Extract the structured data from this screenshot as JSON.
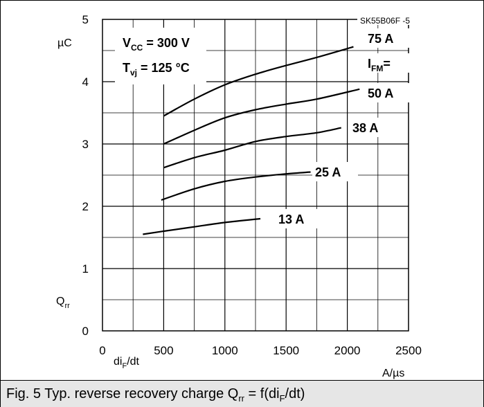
{
  "chart_data": {
    "type": "line",
    "code": "SK55B06F -5",
    "conditions": {
      "vcc": {
        "symbol": "V",
        "sub": "CC",
        "value": " = 300 V"
      },
      "tvj": {
        "symbol": "T",
        "sub": "vj",
        "value": " = 125 °C"
      }
    },
    "ifm_label": {
      "symbol": "I",
      "sub": "FM",
      "suffix": "="
    },
    "x_axis": {
      "label_symbol": "di",
      "label_sub": "F",
      "label_suffix": "/dt",
      "unit": "A/µs",
      "min": 0,
      "max": 2500,
      "major": 500,
      "minor": 250,
      "ticks": [
        0,
        500,
        1000,
        1500,
        2000,
        2500
      ]
    },
    "y_axis": {
      "label_symbol": "Q",
      "label_sub": "rr",
      "unit": "µC",
      "min": 0,
      "max": 5,
      "major": 1,
      "minor": 0.5,
      "ticks": [
        0,
        1,
        2,
        3,
        4,
        5
      ]
    },
    "grid": true,
    "series": [
      {
        "name": "75 A",
        "x": [
          500,
          750,
          1000,
          1250,
          1500,
          1750,
          2050
        ],
        "y": [
          3.45,
          3.72,
          3.95,
          4.12,
          4.26,
          4.39,
          4.56
        ]
      },
      {
        "name": "50 A",
        "x": [
          500,
          750,
          1000,
          1250,
          1500,
          1750,
          2100
        ],
        "y": [
          3.0,
          3.22,
          3.42,
          3.55,
          3.64,
          3.72,
          3.88
        ]
      },
      {
        "name": "38 A",
        "x": [
          500,
          750,
          1000,
          1250,
          1500,
          1750,
          1950
        ],
        "y": [
          2.62,
          2.78,
          2.9,
          3.04,
          3.12,
          3.18,
          3.26
        ]
      },
      {
        "name": "25 A",
        "x": [
          480,
          750,
          1000,
          1250,
          1500,
          1700
        ],
        "y": [
          2.1,
          2.28,
          2.4,
          2.47,
          2.52,
          2.55
        ]
      },
      {
        "name": "13 A",
        "x": [
          330,
          500,
          750,
          1000,
          1290
        ],
        "y": [
          1.55,
          1.6,
          1.67,
          1.74,
          1.8
        ]
      }
    ]
  },
  "caption": {
    "prefix": "Fig. 5 Typ. reverse recovery charge Q",
    "q_sub": "rr",
    "middle": " = f(di",
    "f_sub": "F",
    "suffix": "/dt)"
  }
}
